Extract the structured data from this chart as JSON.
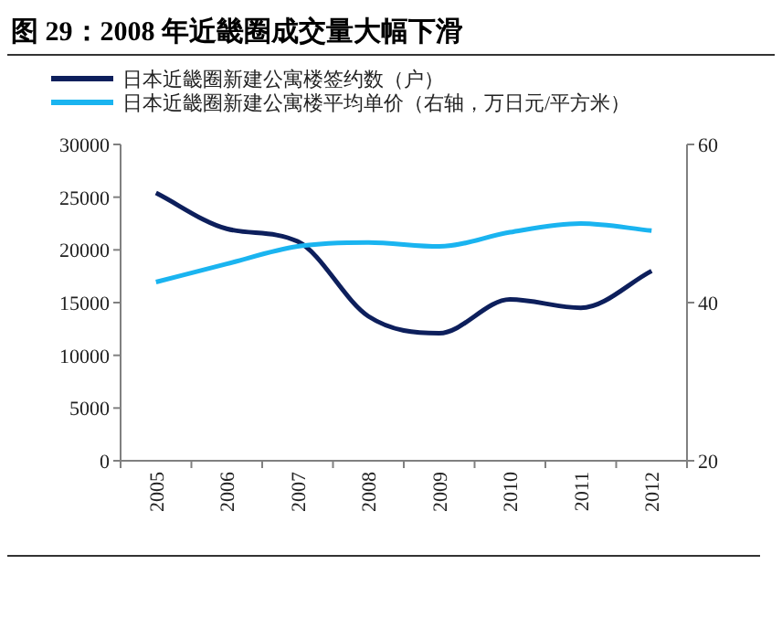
{
  "chart_data": {
    "type": "line",
    "title": "图 29：2008 年近畿圈成交量大幅下滑",
    "categories": [
      "2005",
      "2006",
      "2007",
      "2008",
      "2009",
      "2010",
      "2011",
      "2012"
    ],
    "series": [
      {
        "name": "日本近畿圈新建公寓楼签约数（户）",
        "color": "#0d1f5c",
        "values": [
          25400,
          22000,
          20800,
          13700,
          12100,
          15300,
          14500,
          18000
        ]
      },
      {
        "name": "日本近畿圈新建公寓楼平均单价（右轴，万日元/平方米）",
        "color": "#1ab4f0",
        "axis": "y2",
        "values": [
          42.6,
          44.9,
          47.1,
          47.6,
          47.1,
          48.9,
          50.0,
          49.1
        ]
      }
    ],
    "ylim": [
      0,
      30000
    ],
    "yticks": [
      0,
      5000,
      10000,
      15000,
      20000,
      25000,
      30000
    ],
    "y2lim": [
      20,
      60
    ],
    "y2ticks": [
      20,
      40,
      60
    ],
    "legend": "top",
    "grid": false,
    "marker": "none",
    "line_style": "solid"
  }
}
